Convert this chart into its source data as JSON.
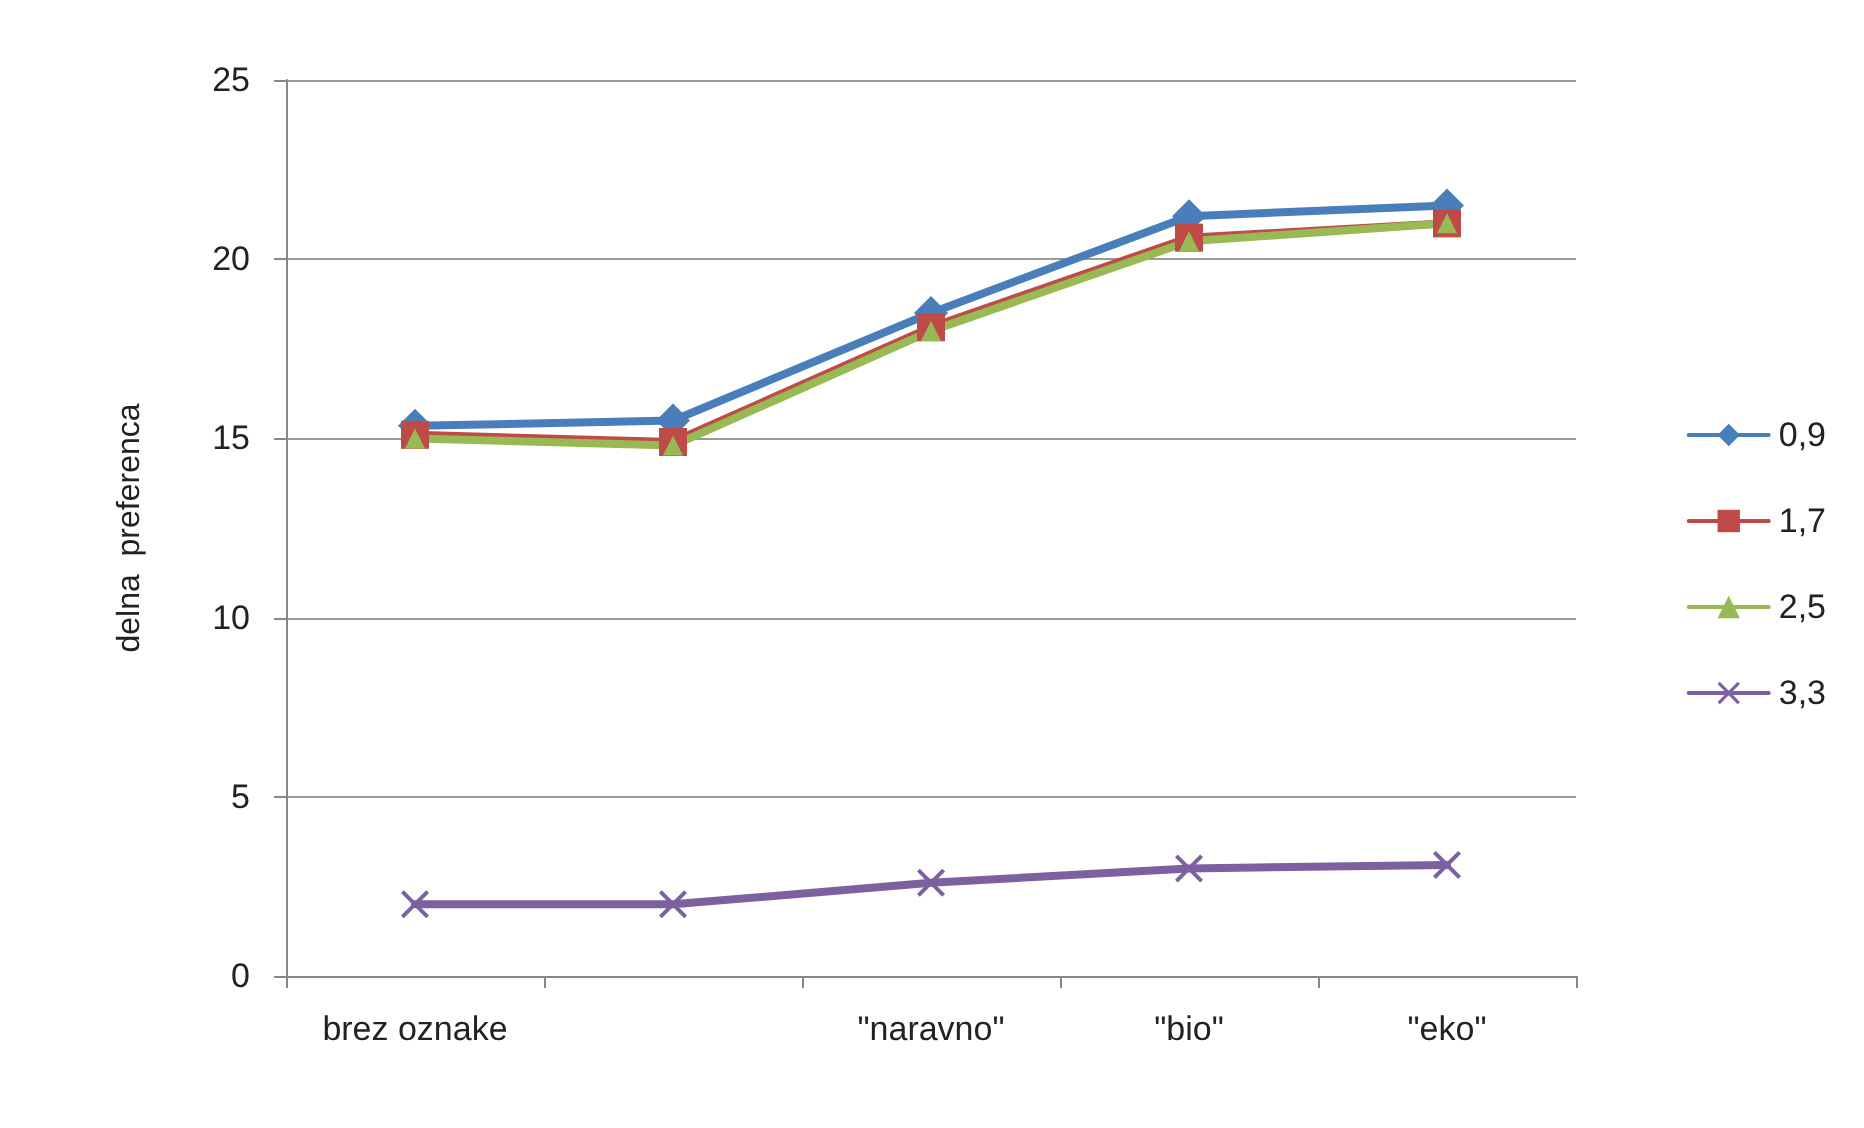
{
  "chart_data": {
    "type": "line",
    "ylabel": "delna  preferenca",
    "categories": [
      "brez oznake",
      null,
      "\"naravno\"",
      "\"bio\"",
      "\"eko\""
    ],
    "series": [
      {
        "name": "0,9",
        "color": "#4a7ebb",
        "marker": "diamond",
        "values": [
          15.35,
          15.5,
          18.5,
          21.2,
          21.5
        ]
      },
      {
        "name": "1,7",
        "color": "#be4b48",
        "marker": "square",
        "values": [
          15.1,
          14.9,
          18.1,
          20.6,
          21.0
        ]
      },
      {
        "name": "2,5",
        "color": "#98b954",
        "marker": "triangle",
        "values": [
          15.0,
          14.8,
          18.0,
          20.5,
          21.0
        ]
      },
      {
        "name": "3,3",
        "color": "#7d60a0",
        "marker": "cross",
        "values": [
          2.0,
          2.0,
          2.6,
          3.0,
          3.1
        ]
      }
    ],
    "ylim": [
      0,
      25
    ],
    "yticks": [
      0,
      5,
      10,
      15,
      20,
      25
    ],
    "grid": "y",
    "legend": "right"
  }
}
